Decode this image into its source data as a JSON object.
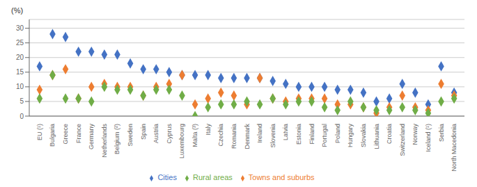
{
  "chart_data": {
    "type": "scatter",
    "y_label": "(%)",
    "categories": [
      "EU (¹)",
      "Bulgaria",
      "Greece",
      "France",
      "Germany",
      "Netherlands",
      "Belgium (²)",
      "Sweden",
      "Spain",
      "Austria",
      "Cyprus",
      "Luxembourg",
      "Malta (³)",
      "Italy",
      "Czechia",
      "Romania",
      "Denmark",
      "Ireland",
      "Slovenia",
      "Latvia",
      "Estonia",
      "Finland",
      "Portugal",
      "Poland",
      "Hungary",
      "Slovakia",
      "Lithuania",
      "Croatia",
      "Switzerland",
      "Norway",
      "Iceland (¹)",
      "Serbia",
      "North Macedonia"
    ],
    "series": [
      {
        "name": "Cities",
        "color": "#4472c4",
        "marker": "diamond",
        "values": [
          17,
          28,
          27,
          22,
          22,
          21,
          21,
          18,
          16,
          16,
          15,
          14,
          14,
          14,
          13,
          13,
          13,
          13,
          12,
          11,
          10,
          10,
          10,
          9,
          9,
          8,
          5,
          6,
          11,
          8,
          4,
          17,
          8
        ]
      },
      {
        "name": "Towns and suburbs",
        "color": "#ed7d31",
        "marker": "diamond",
        "values": [
          9,
          14,
          16,
          6,
          10,
          11,
          10,
          10,
          7,
          10,
          11,
          14,
          4,
          6,
          8,
          7,
          4,
          13,
          6,
          5,
          6,
          6,
          6,
          4,
          4,
          3,
          1,
          3,
          7,
          3,
          2,
          11,
          7
        ]
      },
      {
        "name": "Rural areas",
        "color": "#70ad47",
        "marker": "diamond",
        "values": [
          6,
          14,
          6,
          6,
          5,
          10,
          9,
          9,
          7,
          9,
          9,
          7,
          0,
          3,
          4,
          4,
          5,
          4,
          6,
          4,
          5,
          5,
          3,
          2,
          5,
          3,
          2,
          2,
          3,
          2,
          1,
          5,
          6
        ]
      }
    ],
    "ylim": [
      0,
      33
    ],
    "yticks": [
      0,
      5,
      10,
      15,
      20,
      25,
      30
    ],
    "grid": true,
    "legend": "bottom"
  }
}
